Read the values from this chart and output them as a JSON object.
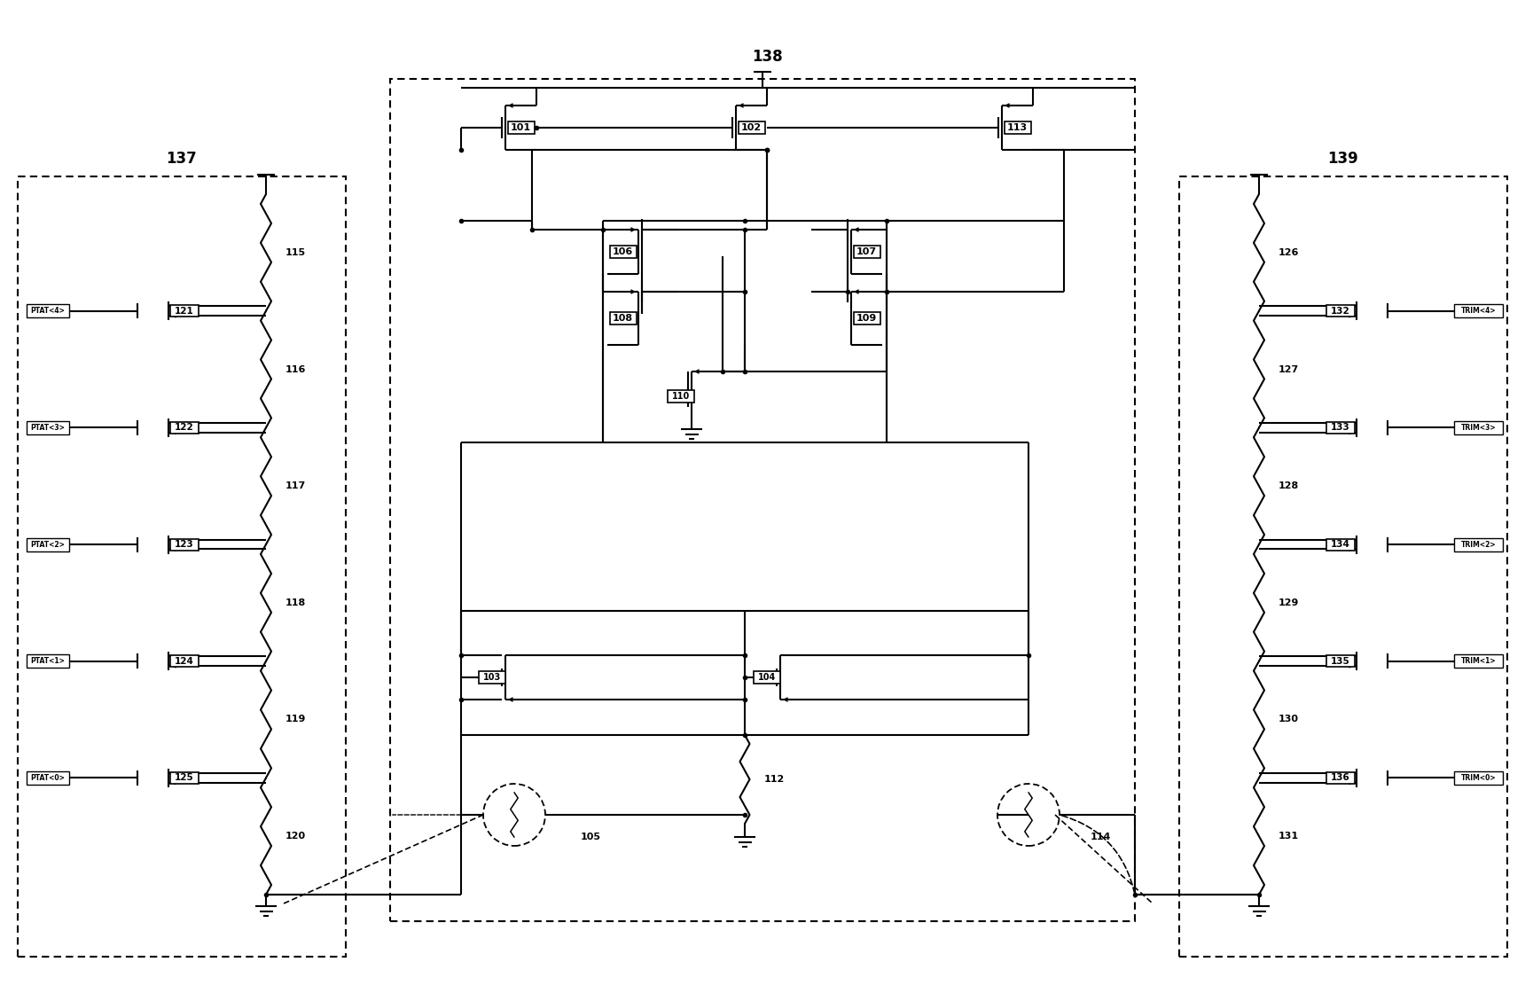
{
  "bg": "#ffffff",
  "lc": "#000000",
  "box137_label": "137",
  "box138_label": "138",
  "box139_label": "139",
  "ptat_labels": [
    "PTAT<4>",
    "PTAT<3>",
    "PTAT<2>",
    "PTAT<1>",
    "PTAT<0>"
  ],
  "sw_labels_l": [
    "121",
    "122",
    "123",
    "124",
    "125"
  ],
  "res_labels_l": [
    "115",
    "116",
    "117",
    "118",
    "119",
    "120"
  ],
  "trim_labels": [
    "TRIM<4>",
    "TRIM<3>",
    "TRIM<2>",
    "TRIM<1>",
    "TRIM<0>"
  ],
  "sw_labels_r": [
    "132",
    "133",
    "134",
    "135",
    "136"
  ],
  "res_labels_r": [
    "126",
    "127",
    "128",
    "129",
    "130",
    "131"
  ],
  "center_labels": [
    "101",
    "102",
    "113",
    "106",
    "107",
    "108",
    "109",
    "110",
    "103",
    "104",
    "112",
    "105",
    "114"
  ]
}
